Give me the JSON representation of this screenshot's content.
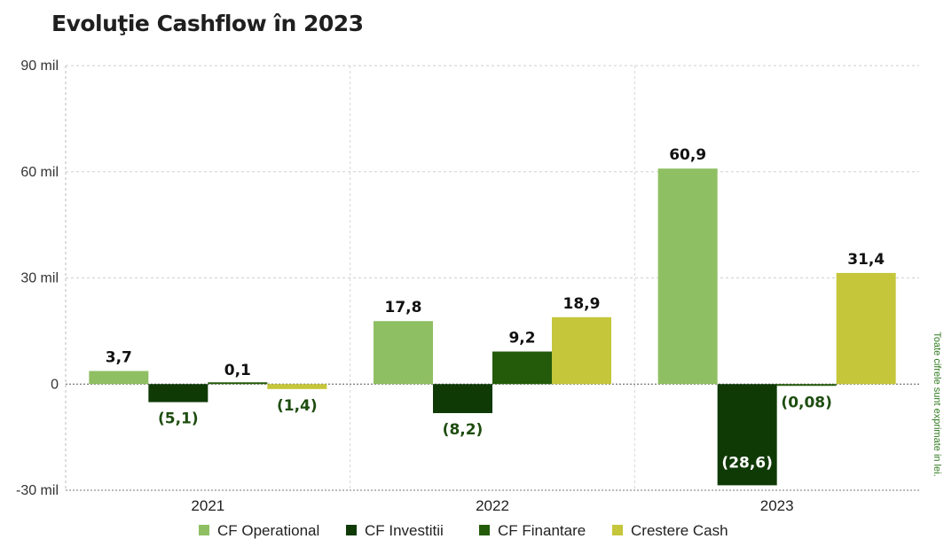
{
  "title": "Evoluţie Cashflow în 2023",
  "side_note": "Toate cifrele sunt exprimate in lei.",
  "colors": {
    "cf_operational": "#8fbf63",
    "cf_investitii": "#0f3a06",
    "cf_finantare": "#245b0a",
    "crestere_cash": "#c5c63a",
    "label_positive": "#111111",
    "label_negative": "#1e4d10"
  },
  "chart_data": {
    "type": "bar",
    "title": "Evoluţie Cashflow în 2023",
    "categories": [
      "2021",
      "2022",
      "2023"
    ],
    "series": [
      {
        "name": "CF Operational",
        "values": [
          3.7,
          17.8,
          60.9
        ],
        "labels": [
          "3,7",
          "17,8",
          "60,9"
        ]
      },
      {
        "name": "CF Investitii",
        "values": [
          -5.1,
          -8.2,
          -28.6
        ],
        "labels": [
          "(5,1)",
          "(8,2)",
          "(28,6)"
        ]
      },
      {
        "name": "CF Finantare",
        "values": [
          0.1,
          9.2,
          -0.08
        ],
        "labels": [
          "0,1",
          "9,2",
          "(0,08)"
        ]
      },
      {
        "name": "Crestere Cash",
        "values": [
          -1.4,
          18.9,
          31.4
        ],
        "labels": [
          "(1,4)",
          "18,9",
          "31,4"
        ]
      }
    ],
    "yticks": [
      "90 mil",
      "60 mil",
      "30 mil",
      "0",
      "-30 mil"
    ],
    "ytick_values": [
      90,
      60,
      30,
      0,
      -30
    ],
    "ylim": [
      -30,
      90
    ],
    "grid": true,
    "legend_position": "bottom"
  }
}
